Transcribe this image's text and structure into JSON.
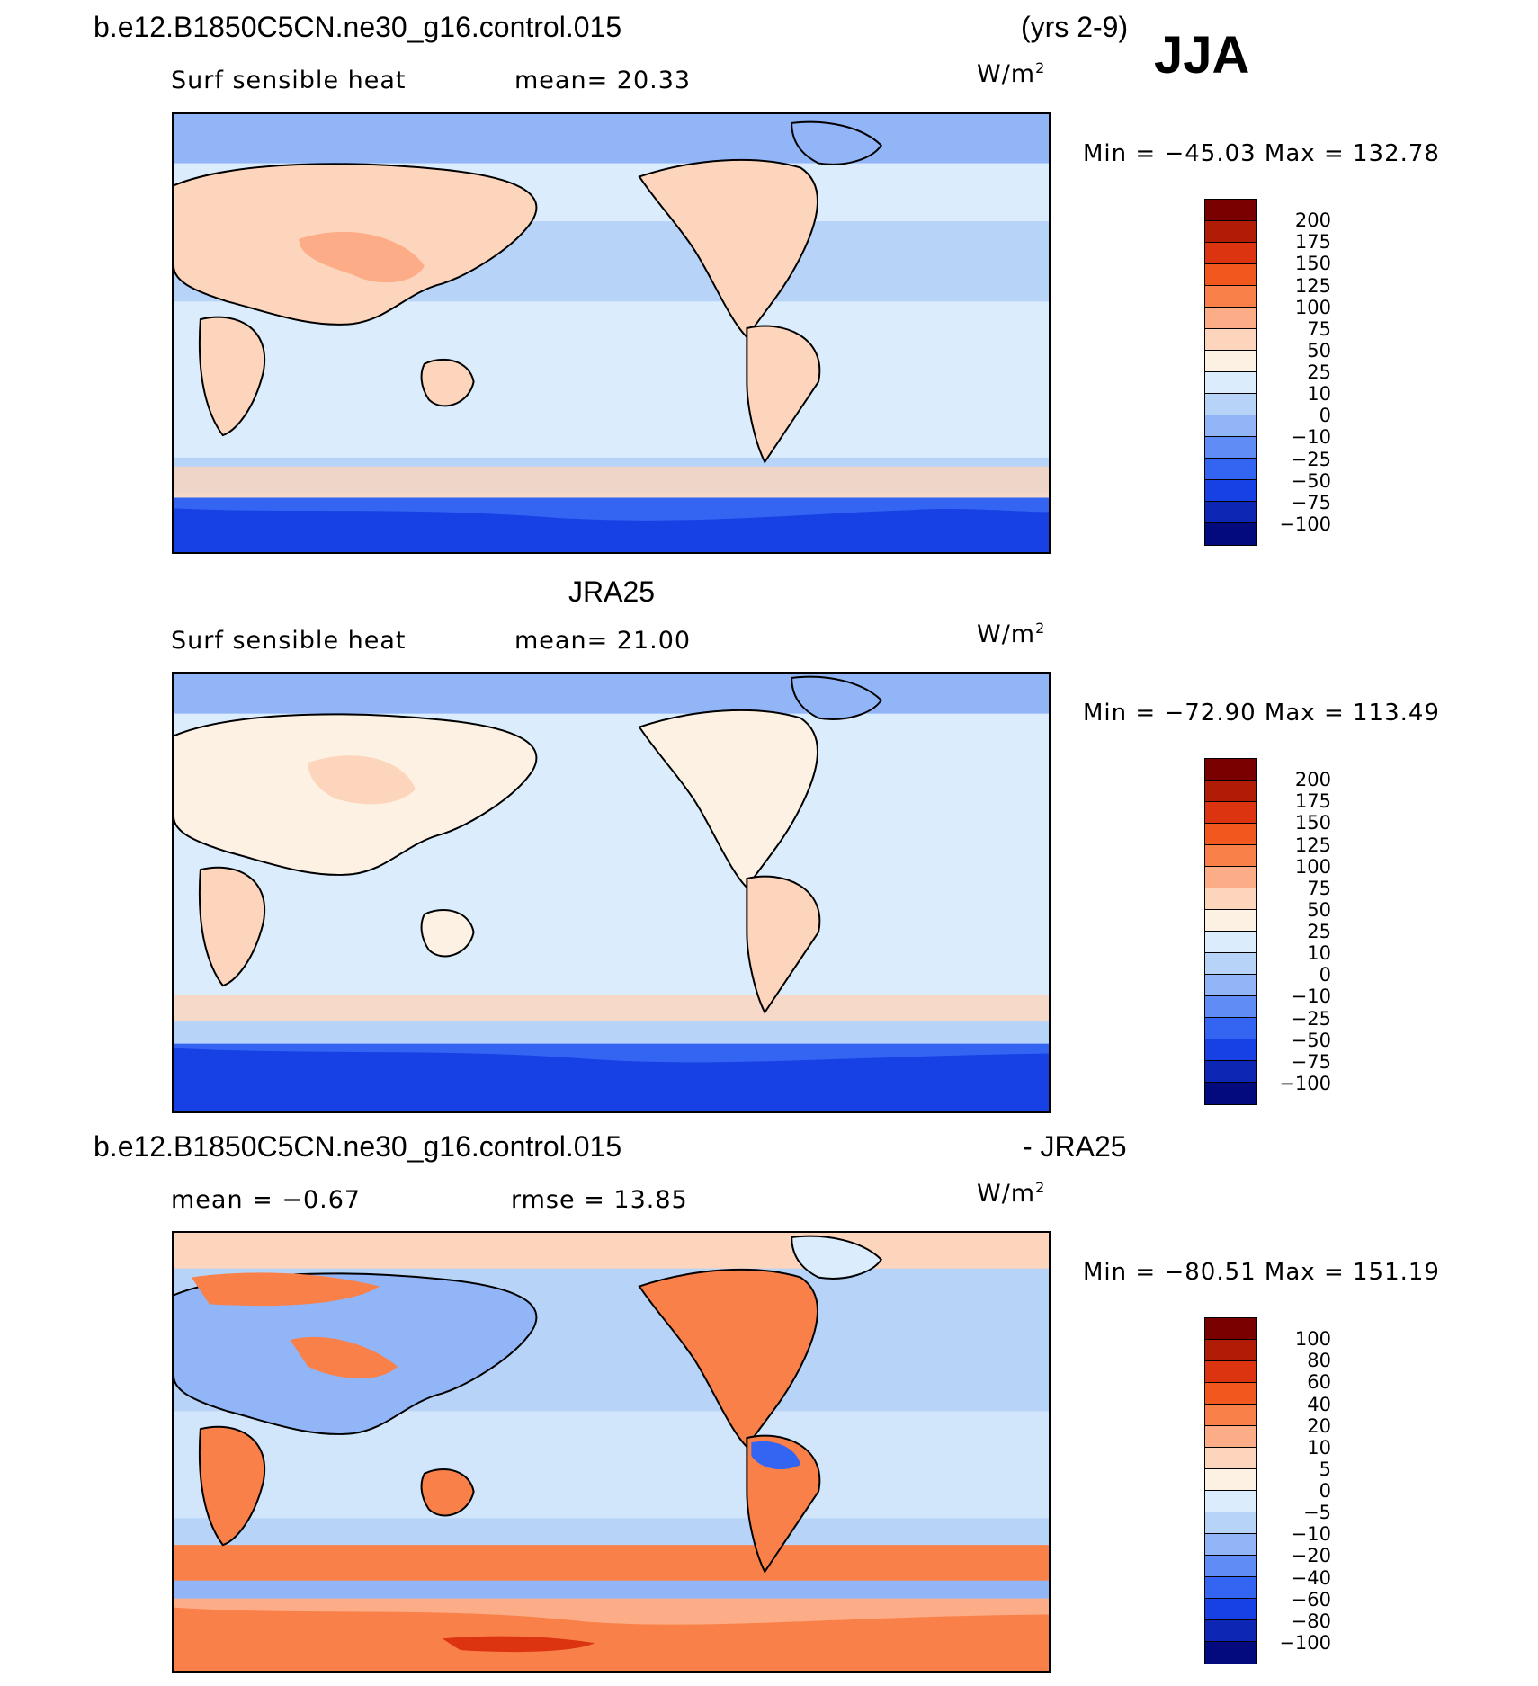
{
  "panels": [
    {
      "id": "model",
      "header_left": "b.e12.B1850C5CN.ne30_g16.control.015",
      "header_right": "(yrs 2-9)",
      "season": "JJA",
      "left_label": "Surf  sensible  heat",
      "mid_label": "mean=   20.33",
      "units_base": "W/m",
      "units_exp": "2",
      "minmax": "Min  =  −45.03  Max  =  132.78",
      "colorbar": {
        "levels": [
          "200",
          "175",
          "150",
          "125",
          "100",
          "75",
          "50",
          "25",
          "10",
          "0",
          "−10",
          "−25",
          "−50",
          "−75",
          "−100"
        ],
        "colors": [
          "#7a0000",
          "#b01c05",
          "#dc3410",
          "#f2581e",
          "#f98048",
          "#fcac86",
          "#fdd5bc",
          "#fdf1e4",
          "#dbecfc",
          "#b8d3f8",
          "#91b5f6",
          "#5f8cf5",
          "#3364f2",
          "#1741e4",
          "#0d27b4",
          "#030a7e"
        ]
      }
    },
    {
      "id": "obs",
      "header_center": "JRA25",
      "left_label": "Surf  sensible  heat",
      "mid_label": "mean=   21.00",
      "units_base": "W/m",
      "units_exp": "2",
      "minmax": "Min  =  −72.90  Max  =  113.49",
      "colorbar": {
        "levels": [
          "200",
          "175",
          "150",
          "125",
          "100",
          "75",
          "50",
          "25",
          "10",
          "0",
          "−10",
          "−25",
          "−50",
          "−75",
          "−100"
        ],
        "colors": [
          "#7a0000",
          "#b01c05",
          "#dc3410",
          "#f2581e",
          "#f98048",
          "#fcac86",
          "#fdd5bc",
          "#fdf1e4",
          "#dbecfc",
          "#b8d3f8",
          "#91b5f6",
          "#5f8cf5",
          "#3364f2",
          "#1741e4",
          "#0d27b4",
          "#030a7e"
        ]
      }
    },
    {
      "id": "diff",
      "header_left": "b.e12.B1850C5CN.ne30_g16.control.015",
      "header_right": "- JRA25",
      "left_label": "mean  =    −0.67",
      "mid_label": "rmse  =    13.85",
      "units_base": "W/m",
      "units_exp": "2",
      "minmax": "Min  =  −80.51  Max  =  151.19",
      "colorbar": {
        "levels": [
          "100",
          "80",
          "60",
          "40",
          "20",
          "10",
          "5",
          "0",
          "−5",
          "−10",
          "−20",
          "−40",
          "−60",
          "−80",
          "−100"
        ],
        "colors": [
          "#7a0000",
          "#b01c05",
          "#dc3410",
          "#f2581e",
          "#f98048",
          "#fcac86",
          "#fdd5bc",
          "#fdf1e4",
          "#dbecfc",
          "#b8d3f8",
          "#91b5f6",
          "#5f8cf5",
          "#3364f2",
          "#1741e4",
          "#0d27b4",
          "#030a7e"
        ]
      }
    }
  ]
}
